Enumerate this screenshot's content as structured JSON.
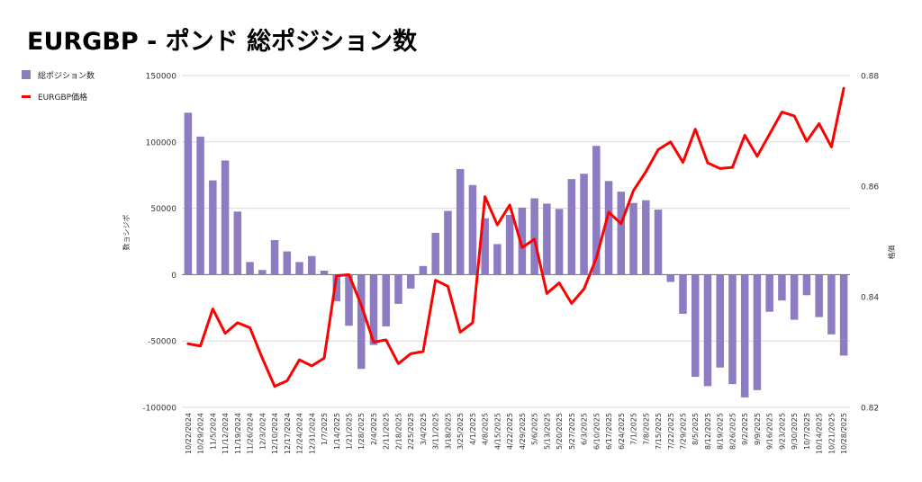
{
  "title": "EURGBP - ポンド 総ポジション数",
  "legend": {
    "bar_label": "総ポジション数",
    "line_label": "EURGBP価格"
  },
  "colors": {
    "bar": "#8e7cc3",
    "line": "#ff0000",
    "grid": "#d9d9d9",
    "axis": "#333333"
  },
  "chart_data": {
    "type": "bar+line",
    "title": "EURGBP - ポンド 総ポジション数",
    "ylabel_left": "数ョシジポ",
    "ylabel_right": "格価",
    "ylim_left": [
      -100000,
      150000
    ],
    "ylim_right": [
      0.82,
      0.88
    ],
    "yticks_left": [
      "150000",
      "100000",
      "50000",
      "0",
      "-50000",
      "-100000"
    ],
    "yticks_right": [
      "0.88",
      "0.86",
      "0.84",
      "0.82"
    ],
    "grid": true,
    "legend_position": "top-left",
    "categories": [
      "10/22/2024",
      "10/29/2024",
      "11/5/2024",
      "11/12/2024",
      "11/19/2024",
      "11/26/2024",
      "12/3/2024",
      "12/10/2024",
      "12/17/2024",
      "12/24/2024",
      "12/31/2024",
      "1/7/2025",
      "1/14/2025",
      "1/21/2025",
      "1/28/2025",
      "2/4/2025",
      "2/11/2025",
      "2/18/2025",
      "2/25/2025",
      "3/4/2025",
      "3/11/2025",
      "3/18/2025",
      "3/25/2025",
      "4/1/2025",
      "4/8/2025",
      "4/15/2025",
      "4/22/2025",
      "4/29/2025",
      "5/6/2025",
      "5/13/2025",
      "5/20/2025",
      "5/27/2025",
      "6/3/2025",
      "6/10/2025",
      "6/17/2025",
      "6/24/2025",
      "7/1/2025",
      "7/8/2025",
      "7/15/2025",
      "7/22/2025",
      "7/29/2025",
      "8/5/2025",
      "8/12/2025",
      "8/19/2025",
      "8/26/2025",
      "9/2/2025",
      "9/9/2025",
      "9/16/2025",
      "9/23/2025",
      "9/30/2025",
      "10/7/2025",
      "10/14/2025",
      "10/21/2025",
      "10/28/2025"
    ],
    "series": [
      {
        "name": "総ポジション数",
        "type": "bar",
        "axis": "left",
        "values": [
          122000,
          104000,
          71000,
          86000,
          47500,
          9500,
          3500,
          26000,
          17500,
          9500,
          14000,
          3000,
          -20000,
          -38500,
          -71000,
          -53000,
          -39000,
          -22000,
          -10500,
          6500,
          31500,
          48000,
          79500,
          67500,
          42500,
          23000,
          45000,
          50500,
          57500,
          53500,
          49500,
          72000,
          76000,
          97000,
          70500,
          62500,
          54000,
          56000,
          49000,
          -5500,
          -29500,
          -77000,
          -84000,
          -70000,
          -82500,
          -92500,
          -87000,
          -28000,
          -19500,
          -34000,
          -15500,
          -32000,
          -45000,
          -61000
        ]
      },
      {
        "name": "EURGBP価格",
        "type": "line",
        "axis": "right",
        "values": [
          0.8315,
          0.8311,
          0.8378,
          0.8334,
          0.8353,
          0.8344,
          0.8289,
          0.8238,
          0.8248,
          0.8286,
          0.8275,
          0.8289,
          0.8438,
          0.844,
          0.8385,
          0.8318,
          0.8322,
          0.8279,
          0.8297,
          0.8301,
          0.843,
          0.8419,
          0.8336,
          0.8353,
          0.8581,
          0.853,
          0.8566,
          0.8489,
          0.8504,
          0.8406,
          0.8425,
          0.8388,
          0.8414,
          0.847,
          0.8553,
          0.8532,
          0.8592,
          0.8626,
          0.8666,
          0.868,
          0.8643,
          0.8703,
          0.8642,
          0.8632,
          0.8634,
          0.8692,
          0.8654,
          0.8694,
          0.8734,
          0.8727,
          0.8681,
          0.8713,
          0.8671,
          0.8777
        ]
      }
    ]
  }
}
